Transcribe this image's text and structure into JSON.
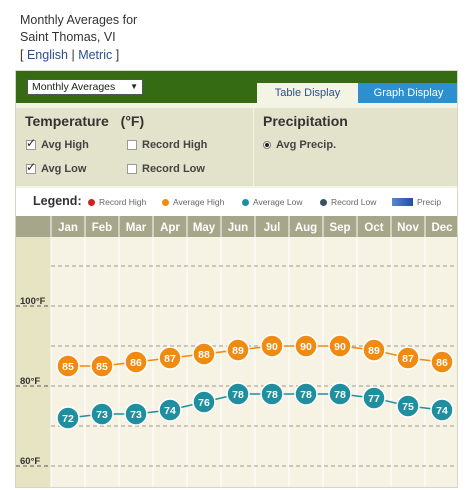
{
  "header": {
    "line1": "Monthly Averages for",
    "line2": "Saint Thomas, VI",
    "bracket_open": "[",
    "english": "English",
    "separator": "|",
    "metric": "Metric",
    "bracket_close": "]"
  },
  "toolbar": {
    "select_value": "Monthly Averages",
    "tab_table": "Table Display",
    "tab_graph": "Graph Display"
  },
  "options": {
    "temperature_title": "Temperature",
    "temperature_unit": "(°F)",
    "avg_high": "Avg High",
    "record_high": "Record High",
    "avg_low": "Avg Low",
    "record_low": "Record Low",
    "precip_title": "Precipitation",
    "avg_precip": "Avg Precip.",
    "checked": {
      "avg_high": true,
      "record_high": false,
      "avg_low": true,
      "record_low": false,
      "avg_precip": true
    }
  },
  "legend": {
    "title": "Legend:",
    "record_high": "Record High",
    "average_high": "Average High",
    "average_low": "Average Low",
    "record_low": "Record Low",
    "precip": "Precip"
  },
  "colors": {
    "record_high": "#cc2222",
    "average_high": "#f08a10",
    "average_low": "#1f8fa0",
    "record_low": "#3a5060",
    "precip": "#2b5fb5",
    "accent": "#2b8fd0",
    "bar_green": "#356c13"
  },
  "chart_data": {
    "type": "line",
    "categories": [
      "Jan",
      "Feb",
      "Mar",
      "Apr",
      "May",
      "Jun",
      "Jul",
      "Aug",
      "Sep",
      "Oct",
      "Nov",
      "Dec"
    ],
    "series": [
      {
        "name": "Average High",
        "values": [
          85,
          85,
          86,
          87,
          88,
          89,
          90,
          90,
          90,
          89,
          87,
          86
        ]
      },
      {
        "name": "Average Low",
        "values": [
          72,
          73,
          73,
          74,
          76,
          78,
          78,
          78,
          78,
          77,
          75,
          74
        ]
      }
    ],
    "yticks": [
      "100°F",
      "80°F",
      "60°F"
    ],
    "ytick_values": [
      100,
      80,
      60
    ],
    "ylim": [
      60,
      115
    ],
    "grid": true
  }
}
